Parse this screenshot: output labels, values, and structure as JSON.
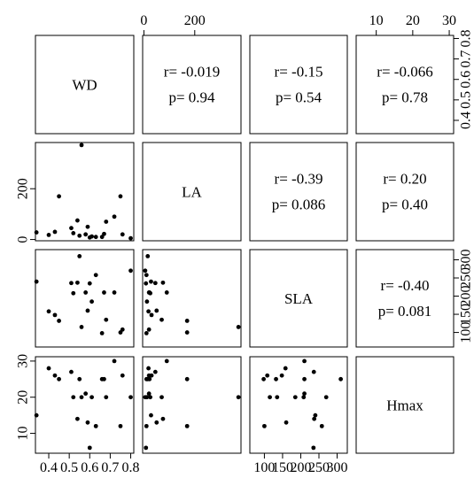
{
  "chart_data": {
    "type": "scatter",
    "kind": "scatterplot-matrix",
    "variables": [
      "WD",
      "LA",
      "SLA",
      "Hmax"
    ],
    "grid": false,
    "axes": {
      "WD": {
        "ticks": [
          0.4,
          0.5,
          0.6,
          0.7,
          0.8
        ],
        "tick_labels": [
          "0.4",
          "0.5",
          "0.6",
          "0.7",
          "0.8"
        ],
        "range": [
          0.335,
          0.815
        ]
      },
      "LA": {
        "ticks": [
          0,
          200
        ],
        "tick_labels": [
          "0",
          "200"
        ],
        "range": [
          -5,
          382
        ]
      },
      "SLA": {
        "ticks": [
          100,
          150,
          200,
          250,
          300
        ],
        "tick_labels": [
          "100",
          "150",
          "200",
          "250",
          "300"
        ],
        "range": [
          60,
          328
        ]
      },
      "Hmax": {
        "ticks": [
          10,
          20,
          30
        ],
        "tick_labels": [
          "10",
          "20",
          "30"
        ],
        "range": [
          4.5,
          31.2
        ]
      }
    },
    "tick_positions": {
      "top_row": {
        "LA": "col1",
        "Hmax": "col3"
      },
      "right_col": {
        "WD": "row0",
        "SLA": "row2"
      },
      "bottom_row": {
        "WD": "col0",
        "SLA": "col2"
      },
      "left_col": {
        "LA": "row1",
        "Hmax": "row3"
      }
    },
    "observations": [
      {
        "WD": 0.34,
        "LA": 28,
        "SLA": 240,
        "Hmax": 15
      },
      {
        "WD": 0.4,
        "LA": 18,
        "SLA": 158,
        "Hmax": 28
      },
      {
        "WD": 0.43,
        "LA": 30,
        "SLA": 148,
        "Hmax": 26
      },
      {
        "WD": 0.45,
        "LA": 170,
        "SLA": 132,
        "Hmax": 25
      },
      {
        "WD": 0.51,
        "LA": 45,
        "SLA": 236,
        "Hmax": 27
      },
      {
        "WD": 0.52,
        "LA": 25,
        "SLA": 208,
        "Hmax": 20
      },
      {
        "WD": 0.54,
        "LA": 75,
        "SLA": 237,
        "Hmax": 14
      },
      {
        "WD": 0.55,
        "LA": 15,
        "SLA": 310,
        "Hmax": 25
      },
      {
        "WD": 0.56,
        "LA": 372,
        "SLA": 115,
        "Hmax": 20
      },
      {
        "WD": 0.58,
        "LA": 20,
        "SLA": 210,
        "Hmax": 21
      },
      {
        "WD": 0.59,
        "LA": 50,
        "SLA": 160,
        "Hmax": 13
      },
      {
        "WD": 0.6,
        "LA": 8,
        "SLA": 235,
        "Hmax": 6
      },
      {
        "WD": 0.61,
        "LA": 12,
        "SLA": 185,
        "Hmax": 20
      },
      {
        "WD": 0.63,
        "LA": 10,
        "SLA": 258,
        "Hmax": 12
      },
      {
        "WD": 0.66,
        "LA": 10,
        "SLA": 98,
        "Hmax": 25
      },
      {
        "WD": 0.67,
        "LA": 22,
        "SLA": 210,
        "Hmax": 25
      },
      {
        "WD": 0.68,
        "LA": 70,
        "SLA": 135,
        "Hmax": 20
      },
      {
        "WD": 0.72,
        "LA": 90,
        "SLA": 210,
        "Hmax": 30
      },
      {
        "WD": 0.75,
        "LA": 170,
        "SLA": 100,
        "Hmax": 12
      },
      {
        "WD": 0.76,
        "LA": 20,
        "SLA": 108,
        "Hmax": 26
      },
      {
        "WD": 0.8,
        "LA": 5,
        "SLA": 270,
        "Hmax": 20
      }
    ],
    "correlations": [
      {
        "pair": [
          "WD",
          "LA"
        ],
        "r": "r= -0.019",
        "p": "p= 0.94"
      },
      {
        "pair": [
          "WD",
          "SLA"
        ],
        "r": "r= -0.15",
        "p": "p= 0.54"
      },
      {
        "pair": [
          "WD",
          "Hmax"
        ],
        "r": "r= -0.066",
        "p": "p= 0.78"
      },
      {
        "pair": [
          "LA",
          "SLA"
        ],
        "r": "r= -0.39",
        "p": "p= 0.086"
      },
      {
        "pair": [
          "LA",
          "Hmax"
        ],
        "r": "r= 0.20",
        "p": "p= 0.40"
      },
      {
        "pair": [
          "SLA",
          "Hmax"
        ],
        "r": "r= -0.40",
        "p": "p= 0.081"
      }
    ]
  }
}
